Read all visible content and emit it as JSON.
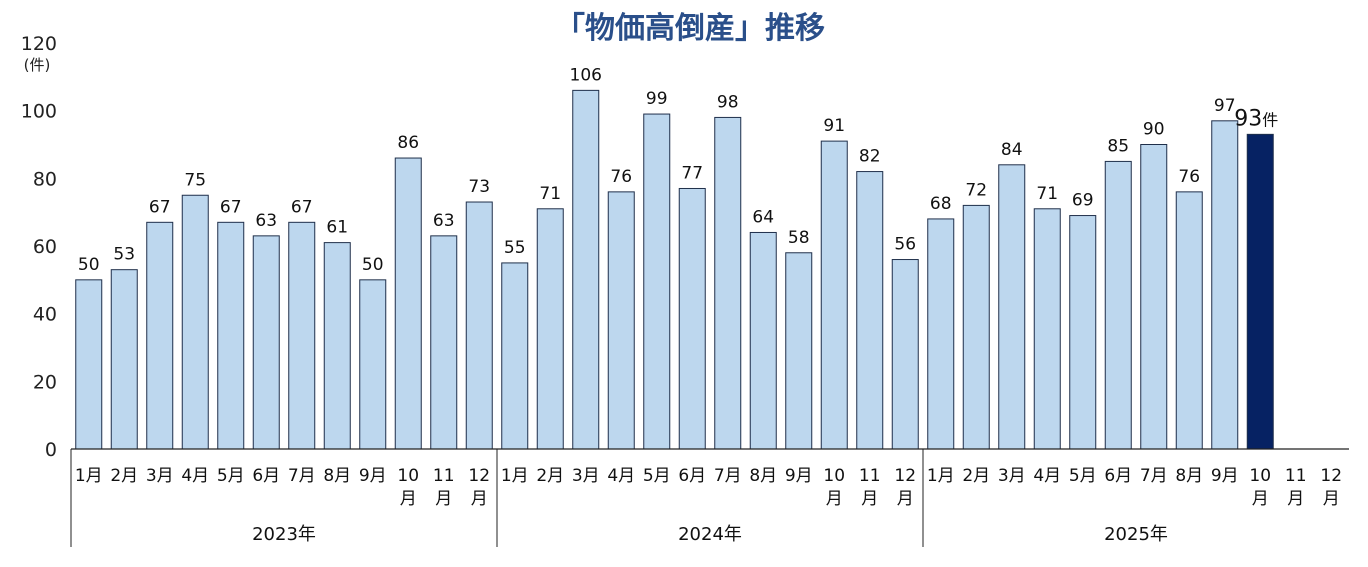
{
  "chart_data": {
    "type": "bar",
    "title": "「物価高倒産」推移",
    "ylabel": "(件)",
    "ylim": [
      0,
      120
    ],
    "yticks": [
      0,
      20,
      40,
      60,
      80,
      100,
      120
    ],
    "grid": false,
    "legend": "none",
    "groups": [
      {
        "year": "2023年",
        "categories": [
          "1月",
          "2月",
          "3月",
          "4月",
          "5月",
          "6月",
          "7月",
          "8月",
          "9月",
          "10月",
          "11月",
          "12月"
        ],
        "values": [
          50,
          53,
          67,
          75,
          67,
          63,
          67,
          61,
          50,
          86,
          63,
          73
        ]
      },
      {
        "year": "2024年",
        "categories": [
          "1月",
          "2月",
          "3月",
          "4月",
          "5月",
          "6月",
          "7月",
          "8月",
          "9月",
          "10月",
          "11月",
          "12月"
        ],
        "values": [
          55,
          71,
          106,
          76,
          99,
          77,
          98,
          64,
          58,
          91,
          82,
          56
        ]
      },
      {
        "year": "2025年",
        "categories": [
          "1月",
          "2月",
          "3月",
          "4月",
          "5月",
          "6月",
          "7月",
          "8月",
          "9月",
          "10月",
          "11月",
          "12月"
        ],
        "values": [
          68,
          72,
          84,
          71,
          69,
          85,
          90,
          76,
          97,
          93,
          null,
          null
        ]
      }
    ],
    "highlight": {
      "year": "2025年",
      "month": "10月",
      "value": 93,
      "unit": "件"
    },
    "colors": {
      "bar": "#bdd7ee",
      "bar_stroke": "#1f2f4a",
      "highlight": "#062263",
      "title": "#2a4f8a"
    }
  }
}
